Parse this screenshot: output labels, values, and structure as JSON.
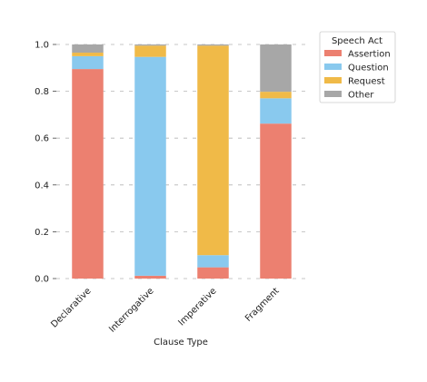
{
  "chart_data": {
    "type": "bar",
    "stacked": true,
    "orientation": "vertical",
    "categories": [
      "Declarative",
      "Interrogative",
      "Imperative",
      "Fragment"
    ],
    "series": [
      {
        "name": "Assertion",
        "color": "#ec8070",
        "values": [
          0.895,
          0.012,
          0.048,
          0.662
        ]
      },
      {
        "name": "Question",
        "color": "#89c9ee",
        "values": [
          0.055,
          0.935,
          0.052,
          0.108
        ]
      },
      {
        "name": "Request",
        "color": "#f0ba48",
        "values": [
          0.015,
          0.048,
          0.895,
          0.028
        ]
      },
      {
        "name": "Other",
        "color": "#a7a7a7",
        "values": [
          0.035,
          0.005,
          0.005,
          0.202
        ]
      }
    ],
    "xlabel": "Clause Type",
    "ylabel": "",
    "ylim": [
      0,
      1.0
    ],
    "yticks": [
      "0.0",
      "0.2",
      "0.4",
      "0.6",
      "0.8",
      "1.0"
    ],
    "grid": "horizontal dashed",
    "legend": {
      "title": "Speech Act",
      "placement": "outside-top-right"
    }
  }
}
